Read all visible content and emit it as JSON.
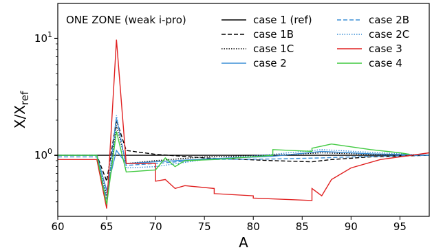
{
  "chart_data": {
    "type": "line",
    "annotation": "ONE ZONE (weak i-pro)",
    "xlabel": "A",
    "ylabel_main": "X/X",
    "ylabel_sub": "ref",
    "xlim": [
      60,
      98
    ],
    "ylim": [
      0.3,
      20
    ],
    "yscale": "log",
    "x_ticks": [
      60,
      65,
      70,
      75,
      80,
      85,
      90,
      95
    ],
    "y_ticks": [
      {
        "value": 1,
        "base": "10",
        "exp": "0"
      },
      {
        "value": 10,
        "base": "10",
        "exp": "1"
      }
    ],
    "legend_position": "top-right",
    "series": [
      {
        "name": "case 1 (ref)",
        "color": "#000000",
        "dash": "solid",
        "points": [
          [
            60,
            1
          ],
          [
            98,
            1
          ]
        ]
      },
      {
        "name": "case 1B",
        "color": "#000000",
        "dash": "dashed",
        "points": [
          [
            60,
            1
          ],
          [
            64,
            1
          ],
          [
            65,
            0.6
          ],
          [
            66,
            2.0
          ],
          [
            67,
            1.1
          ],
          [
            70,
            1.02
          ],
          [
            75,
            0.95
          ],
          [
            82,
            0.9
          ],
          [
            86,
            0.88
          ],
          [
            88,
            0.92
          ],
          [
            92,
            0.97
          ],
          [
            98,
            1.0
          ]
        ]
      },
      {
        "name": "case 1C",
        "color": "#000000",
        "dash": "dotted",
        "points": [
          [
            60,
            1
          ],
          [
            64,
            1
          ],
          [
            65,
            0.45
          ],
          [
            66,
            1.8
          ],
          [
            67,
            0.85
          ],
          [
            70,
            0.9
          ],
          [
            75,
            0.97
          ],
          [
            82,
            1.0
          ],
          [
            87,
            1.05
          ],
          [
            92,
            1.02
          ],
          [
            98,
            1.0
          ]
        ]
      },
      {
        "name": "case 2",
        "color": "#3b8fd5",
        "dash": "solid",
        "points": [
          [
            60,
            1
          ],
          [
            64,
            1
          ],
          [
            65,
            0.5
          ],
          [
            66,
            1.1
          ],
          [
            67,
            0.85
          ],
          [
            70,
            0.88
          ],
          [
            75,
            0.93
          ],
          [
            82,
            0.98
          ],
          [
            87,
            1.08
          ],
          [
            92,
            1.03
          ],
          [
            98,
            1.0
          ]
        ]
      },
      {
        "name": "case 2B",
        "color": "#3b8fd5",
        "dash": "dashed",
        "points": [
          [
            60,
            0.97
          ],
          [
            64,
            0.97
          ],
          [
            65,
            0.42
          ],
          [
            66,
            2.1
          ],
          [
            67,
            0.82
          ],
          [
            70,
            0.85
          ],
          [
            75,
            0.92
          ],
          [
            82,
            0.93
          ],
          [
            87,
            0.95
          ],
          [
            92,
            0.98
          ],
          [
            98,
            1.0
          ]
        ]
      },
      {
        "name": "case 2C",
        "color": "#3b8fd5",
        "dash": "dotted",
        "points": [
          [
            60,
            1
          ],
          [
            64,
            1
          ],
          [
            65,
            0.42
          ],
          [
            66,
            2.2
          ],
          [
            67,
            0.78
          ],
          [
            70,
            0.8
          ],
          [
            75,
            0.92
          ],
          [
            82,
            1.02
          ],
          [
            87,
            1.12
          ],
          [
            92,
            1.06
          ],
          [
            98,
            1.0
          ]
        ]
      },
      {
        "name": "case 3",
        "color": "#e02020",
        "dash": "solid",
        "points": [
          [
            60,
            0.92
          ],
          [
            64,
            0.92
          ],
          [
            65,
            0.35
          ],
          [
            66,
            9.8
          ],
          [
            67,
            0.85
          ],
          [
            70,
            0.85
          ],
          [
            70,
            0.6
          ],
          [
            71,
            0.62
          ],
          [
            72,
            0.52
          ],
          [
            73,
            0.55
          ],
          [
            76,
            0.52
          ],
          [
            76,
            0.47
          ],
          [
            80,
            0.45
          ],
          [
            80,
            0.43
          ],
          [
            86,
            0.41
          ],
          [
            86,
            0.52
          ],
          [
            87,
            0.45
          ],
          [
            88,
            0.62
          ],
          [
            90,
            0.78
          ],
          [
            93,
            0.92
          ],
          [
            98,
            1.05
          ]
        ]
      },
      {
        "name": "case 4",
        "color": "#3fc93f",
        "dash": "solid",
        "points": [
          [
            60,
            1
          ],
          [
            64,
            1
          ],
          [
            65,
            0.38
          ],
          [
            66,
            1.6
          ],
          [
            67,
            0.72
          ],
          [
            70,
            0.75
          ],
          [
            71,
            0.95
          ],
          [
            72,
            0.8
          ],
          [
            73,
            0.9
          ],
          [
            76,
            0.92
          ],
          [
            82,
            1.0
          ],
          [
            82,
            1.12
          ],
          [
            86,
            1.08
          ],
          [
            86,
            1.15
          ],
          [
            88,
            1.25
          ],
          [
            92,
            1.12
          ],
          [
            95,
            1.05
          ],
          [
            96,
            1.02
          ]
        ]
      }
    ]
  }
}
